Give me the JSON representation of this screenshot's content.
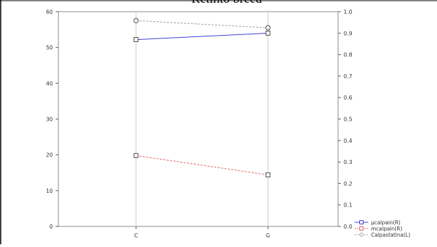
{
  "chart_data": {
    "type": "line",
    "title": "Retinto breed",
    "categories": [
      "C",
      "G"
    ],
    "left_axis": {
      "ticks": [
        "0",
        "10",
        "20",
        "30",
        "40",
        "50",
        "60"
      ],
      "ylim": [
        0,
        60
      ]
    },
    "right_axis": {
      "ticks": [
        "0.0",
        "0.1",
        "0.2",
        "0.3",
        "0.4",
        "0.5",
        "0.6",
        "0.7",
        "0.8",
        "0.9",
        "1.0"
      ],
      "ylim": [
        0,
        1
      ]
    },
    "grid": true,
    "legend_position": "bottom-right",
    "series": [
      {
        "name": "μcalpain(R)",
        "axis": "right",
        "values": [
          0.87,
          0.9
        ],
        "color": "#3a3ad6",
        "dash": "solid",
        "marker": "square"
      },
      {
        "name": "mcalpain(R)",
        "axis": "right",
        "values": [
          0.33,
          0.24
        ],
        "color": "#e06060",
        "dash": "dashed",
        "marker": "square"
      },
      {
        "name": "Calpastatina(L)",
        "axis": "left",
        "values": [
          57.5,
          55.5
        ],
        "color": "#9a9a9a",
        "dash": "dashed",
        "marker": "circle"
      }
    ]
  }
}
